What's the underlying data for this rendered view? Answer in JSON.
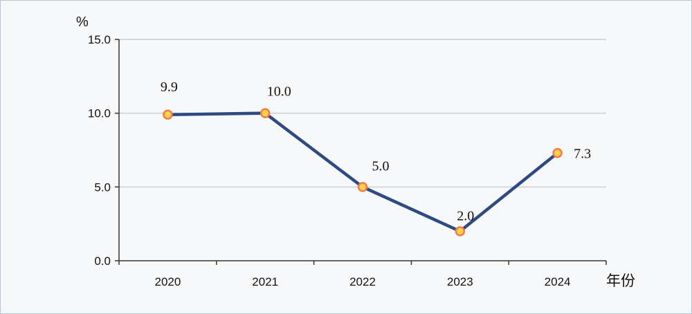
{
  "chart_data": {
    "type": "line",
    "y_unit_label": "%",
    "x_unit_label": "年份",
    "categories": [
      "2020",
      "2021",
      "2022",
      "2023",
      "2024"
    ],
    "series": [
      {
        "values": [
          9.9,
          10.0,
          5.0,
          2.0,
          7.3
        ]
      }
    ],
    "data_labels": [
      "9.9",
      "10.0",
      "5.0",
      "2.0",
      "7.3"
    ],
    "y_ticks": [
      {
        "value": 0,
        "label": "0.0"
      },
      {
        "value": 5,
        "label": "5.0"
      },
      {
        "value": 10,
        "label": "10.0"
      },
      {
        "value": 15,
        "label": "15.0"
      }
    ],
    "ylim": [
      0,
      15
    ],
    "grid": true,
    "line_color": "#2f4a82",
    "marker_fill": "#ffd24a",
    "marker_stroke": "#f07a4a",
    "grid_color": "#c9cdd2"
  }
}
